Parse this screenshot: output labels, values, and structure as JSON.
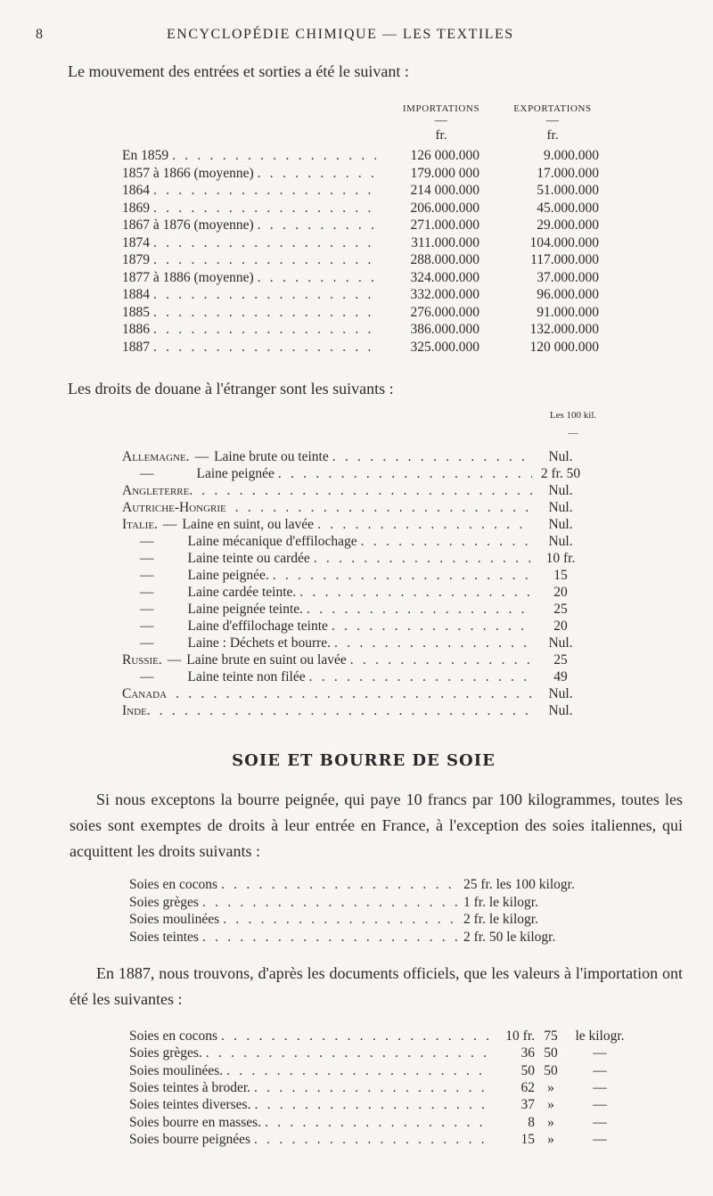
{
  "header": {
    "page_number": "8",
    "running_title": "ENCYCLOPÉDIE CHIMIQUE — LES TEXTILES"
  },
  "table1": {
    "intro": "Le mouvement des entrées et sorties a été le suivant :",
    "col_imports": "IMPORTATIONS",
    "col_exports": "EXPORTATIONS",
    "dash": "—",
    "unit": "fr.",
    "rows": [
      {
        "label": "En 1859",
        "imports": "126 000.000",
        "exports": "9.000.000"
      },
      {
        "label": "1857 à 1866 (moyenne)",
        "imports": "179.000 000",
        "exports": "17.000.000"
      },
      {
        "label": "1864",
        "imports": "214 000.000",
        "exports": "51.000.000"
      },
      {
        "label": "1869",
        "imports": "206.000.000",
        "exports": "45.000.000"
      },
      {
        "label": "1867 à 1876 (moyenne)",
        "imports": "271.000.000",
        "exports": "29.000.000"
      },
      {
        "label": "1874",
        "imports": "311.000.000",
        "exports": "104.000.000"
      },
      {
        "label": "1879",
        "imports": "288.000.000",
        "exports": "117.000.000"
      },
      {
        "label": "1877 à 1886 (moyenne)",
        "imports": "324.000.000",
        "exports": "37.000.000"
      },
      {
        "label": "1884",
        "imports": "332.000.000",
        "exports": "96.000.000"
      },
      {
        "label": "1885",
        "imports": "276.000.000",
        "exports": "91.000.000"
      },
      {
        "label": "1886",
        "imports": "386.000.000",
        "exports": "132.000.000"
      },
      {
        "label": "1887",
        "imports": "325.000.000",
        "exports": "120 000.000"
      }
    ]
  },
  "table2": {
    "intro": "Les droits de douane à l'étranger sont les suivants :",
    "unit": "Les 100 kil.",
    "dash": "—",
    "rows": [
      {
        "country": "Allemagne.",
        "sep": "—",
        "item": "Laine brute ou teinte",
        "value": "Nul."
      },
      {
        "country": "",
        "sep": "—",
        "item": "Laine peignée",
        "value": "2 fr. 50"
      },
      {
        "country": "Angleterre.",
        "sep": "",
        "item": "",
        "value": "Nul."
      },
      {
        "country": "Autriche-Hongrie",
        "sep": "",
        "item": "",
        "value": "Nul."
      },
      {
        "country": "Italie.",
        "sep": "—",
        "item": "Laine en suint, ou lavée",
        "value": "Nul."
      },
      {
        "country": "",
        "sep": "—",
        "item": "Laine mécanique d'effilochage",
        "value": "Nul."
      },
      {
        "country": "",
        "sep": "—",
        "item": "Laine teinte ou cardée",
        "value": "10 fr."
      },
      {
        "country": "",
        "sep": "—",
        "item": "Laine peignée.",
        "value": "15"
      },
      {
        "country": "",
        "sep": "—",
        "item": "Laine cardée teinte.",
        "value": "20"
      },
      {
        "country": "",
        "sep": "—",
        "item": "Laine peignée teinte.",
        "value": "25"
      },
      {
        "country": "",
        "sep": "—",
        "item": "Laine d'effilochage teinte",
        "value": "20"
      },
      {
        "country": "",
        "sep": "—",
        "item": "Laine : Déchets et bourre.",
        "value": "Nul."
      },
      {
        "country": "Russie.",
        "sep": "—",
        "item": "Laine brute en suint ou lavée",
        "value": "25"
      },
      {
        "country": "",
        "sep": "—",
        "item": "Laine teinte non filée",
        "value": "49"
      },
      {
        "country": "Canada",
        "sep": "",
        "item": "",
        "value": "Nul."
      },
      {
        "country": "Inde.",
        "sep": "",
        "item": "",
        "value": "Nul."
      }
    ]
  },
  "section": {
    "heading": "SOIE ET BOURRE DE SOIE",
    "paragraph1": "Si nous exceptons la bourre peignée, qui paye 10 francs par 100 kilogrammes, toutes les soies sont exemptes de droits à leur entrée en France, à l'exception des soies italiennes, qui acquittent les droits suivants :",
    "table3": [
      {
        "label": "Soies en cocons",
        "value": "25 fr. les 100 kilogr."
      },
      {
        "label": "Soies grèges",
        "value": "1 fr. le kilogr."
      },
      {
        "label": "Soies moulinées",
        "value": "2 fr. le kilogr."
      },
      {
        "label": "Soies teintes",
        "value": "2 fr. 50 le kilogr."
      }
    ],
    "paragraph2": "En 1887, nous trouvons, d'après les documents officiels, que les valeurs à l'importation ont été les suivantes :",
    "table4": [
      {
        "label": "Soies en cocons",
        "fr": "10 fr.",
        "cts": "75",
        "unit": "le kilogr."
      },
      {
        "label": "Soies grèges.",
        "fr": "36",
        "cts": "50",
        "unit": "—"
      },
      {
        "label": "Soies moulinées.",
        "fr": "50",
        "cts": "50",
        "unit": "—"
      },
      {
        "label": "Soies teintes à broder.",
        "fr": "62",
        "cts": "»",
        "unit": "—"
      },
      {
        "label": "Soies teintes diverses.",
        "fr": "37",
        "cts": "»",
        "unit": "—"
      },
      {
        "label": "Soies bourre en masses.",
        "fr": "8",
        "cts": "»",
        "unit": "—"
      },
      {
        "label": "Soies bourre peignées",
        "fr": "15",
        "cts": "»",
        "unit": "—"
      }
    ]
  }
}
